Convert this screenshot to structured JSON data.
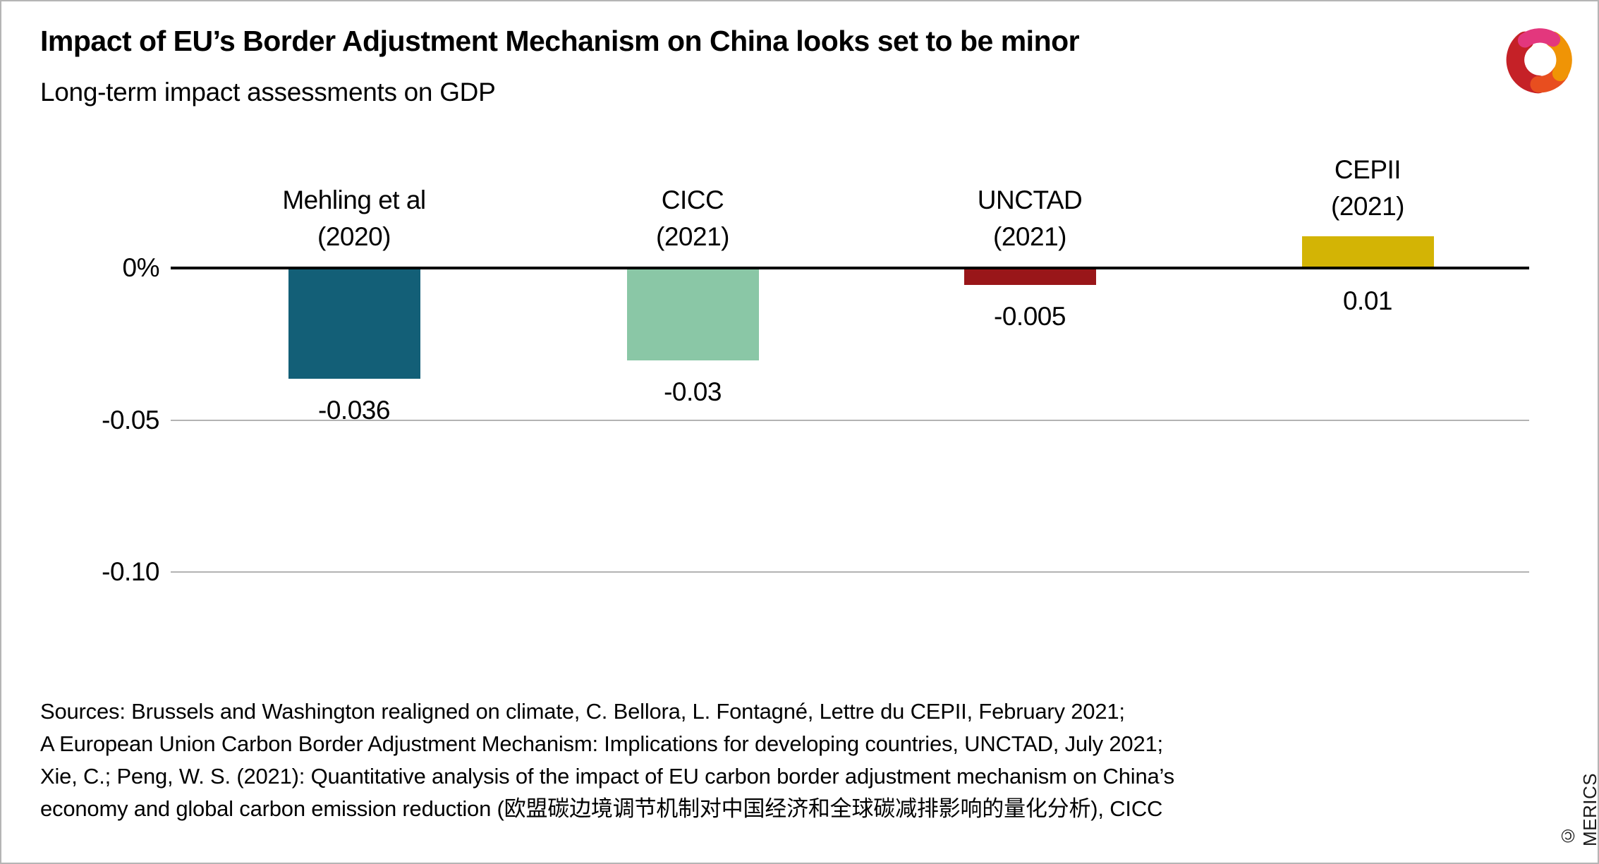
{
  "header": {
    "title": "Impact of EU’s Border Adjustment Mechanism on China looks set to be minor",
    "subtitle": "Long-term impact assessments on GDP"
  },
  "chart_data": {
    "type": "bar",
    "title": "Impact of EU’s Border Adjustment Mechanism on China looks set to be minor",
    "subtitle": "Long-term impact assessments on GDP",
    "categories": [
      "Mehling et al (2020)",
      "CICC (2021)",
      "UNCTAD (2021)",
      "CEPII (2021)"
    ],
    "category_lines": [
      [
        "Mehling et al",
        "(2020)"
      ],
      [
        "CICC",
        "(2021)"
      ],
      [
        "UNCTAD",
        "(2021)"
      ],
      [
        "CEPII",
        "(2021)"
      ]
    ],
    "values": [
      -0.036,
      -0.03,
      -0.005,
      0.01
    ],
    "value_labels": [
      "-0.036",
      "-0.03",
      "-0.005",
      "0.01"
    ],
    "bar_colors": [
      "#135F77",
      "#8AC7A6",
      "#991619",
      "#D3B405"
    ],
    "yticks": [
      {
        "value": 0,
        "label": "0%"
      },
      {
        "value": -0.05,
        "label": "-0.05"
      },
      {
        "value": -0.1,
        "label": "-0.10"
      }
    ],
    "ylim": [
      -0.115,
      0.025
    ],
    "xlabel": "",
    "ylabel": "",
    "grid": "horizontal-light-gray",
    "legend": "none",
    "zero_axis_color": "#000000",
    "grid_color": "#b3b3b3"
  },
  "sources": {
    "lines": [
      "Sources: Brussels and Washington realigned on climate, C. Bellora, L. Fontagné, Lettre du CEPII, February 2021;",
      "A European Union Carbon Border Adjustment Mechanism: Implications for developing countries, UNCTAD, July 2021;",
      "Xie, C.; Peng, W. S. (2021): Quantitative analysis of the impact of EU carbon border adjustment mechanism on China’s",
      "economy and global carbon emission reduction (欧盟碳边境调节机制对中国经济和全球碳减排影响的量化分析), CICC"
    ]
  },
  "footer": {
    "copyright": "© MERICS"
  },
  "logo": {
    "name": "merics-swirl-logo",
    "colors": {
      "red": "#C52127",
      "magenta": "#E3377D",
      "orange": "#F09405",
      "orange_red": "#E84E1F"
    }
  }
}
